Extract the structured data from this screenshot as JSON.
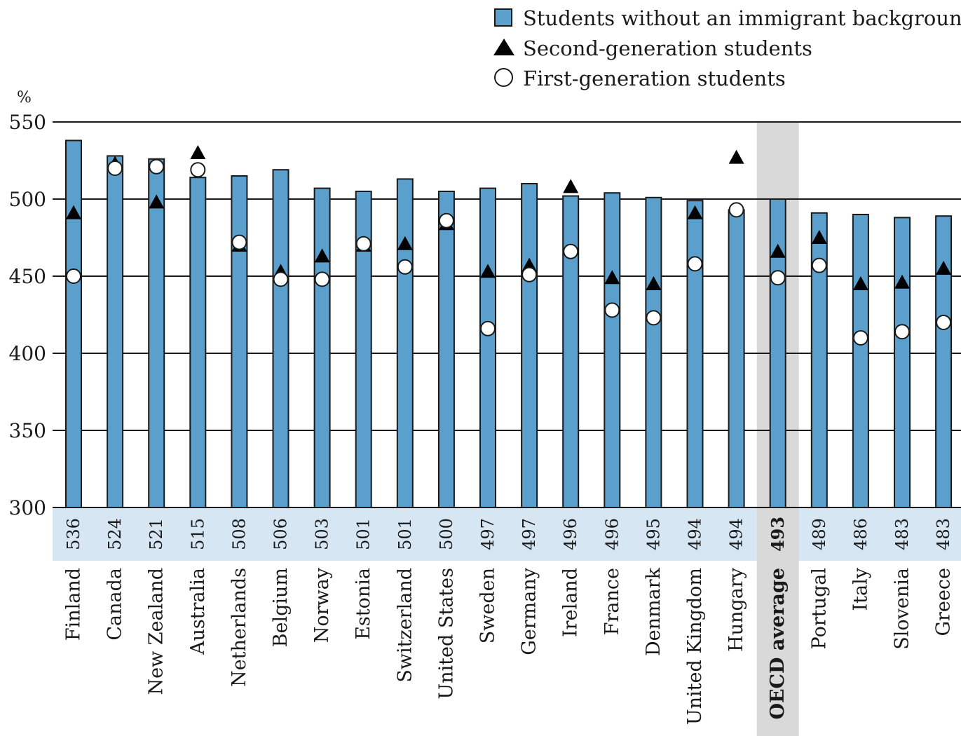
{
  "legend": {
    "bar_label": "Students without an immigrant background",
    "triangle_label": "Second-generation students",
    "circle_label": "First-generation students"
  },
  "chart_data": {
    "type": "bar",
    "y_unit_label": "%",
    "ylim": [
      300,
      550
    ],
    "yticks": [
      300,
      350,
      400,
      450,
      500,
      550
    ],
    "grid": true,
    "legend_position": "top-right",
    "categories": [
      "Finland",
      "Canada",
      "New Zealand",
      "Australia",
      "Netherlands",
      "Belgium",
      "Norway",
      "Estonia",
      "Switzerland",
      "United States",
      "Sweden",
      "Germany",
      "Ireland",
      "France",
      "Denmark",
      "United Kingdom",
      "Hungary",
      "OECD average",
      "Portugal",
      "Italy",
      "Slovenia",
      "Greece"
    ],
    "highlight_category": "OECD average",
    "score_labels": [
      "536",
      "524",
      "521",
      "515",
      "508",
      "506",
      "503",
      "501",
      "501",
      "500",
      "497",
      "497",
      "496",
      "496",
      "495",
      "494",
      "494",
      "493",
      "489",
      "486",
      "483",
      "483"
    ],
    "series": [
      {
        "name": "Students without an immigrant background",
        "marker": "bar",
        "values": [
          538,
          528,
          526,
          514,
          515,
          519,
          507,
          505,
          513,
          505,
          507,
          510,
          502,
          504,
          501,
          499,
          493,
          500,
          491,
          490,
          488,
          489
        ]
      },
      {
        "name": "Second-generation students",
        "marker": "triangle",
        "values": [
          491,
          523,
          498,
          530,
          470,
          453,
          463,
          470,
          471,
          484,
          453,
          457,
          508,
          449,
          445,
          491,
          527,
          466,
          475,
          445,
          446,
          455
        ]
      },
      {
        "name": "First-generation students",
        "marker": "circle",
        "values": [
          450,
          520,
          521,
          519,
          472,
          448,
          448,
          471,
          456,
          486,
          416,
          451,
          466,
          428,
          423,
          458,
          493,
          449,
          457,
          410,
          414,
          420
        ]
      }
    ],
    "colors": {
      "bar": "#5b9fcd",
      "label_band": "#d6e6f3",
      "highlight": "#d9d9d9",
      "marker_fill": "#ffffff",
      "triangle": "#000000"
    }
  }
}
